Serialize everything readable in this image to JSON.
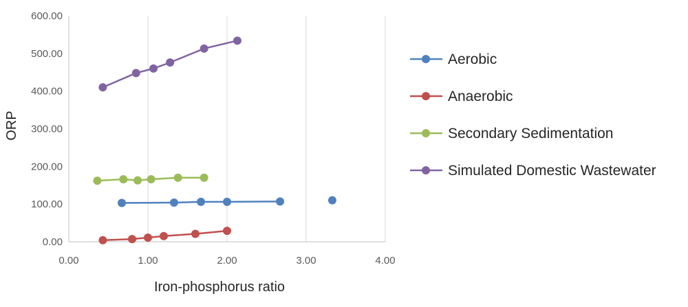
{
  "chart_data": {
    "type": "scatter",
    "title": "",
    "xlabel": "Iron-phosphorus ratio",
    "ylabel": "ORP",
    "xlim": [
      0,
      4
    ],
    "ylim": [
      0,
      600
    ],
    "x_ticks": [
      "0.00",
      "1.00",
      "2.00",
      "3.00",
      "4.00"
    ],
    "y_ticks": [
      "0.00",
      "100.00",
      "200.00",
      "300.00",
      "400.00",
      "500.00",
      "600.00"
    ],
    "grid": "vertical",
    "legend_position": "right",
    "series": [
      {
        "name": "Aerobic",
        "color": "#4F81BD",
        "x": [
          0.67,
          1.33,
          1.67,
          2.0,
          2.67,
          3.33
        ],
        "y": [
          103,
          104,
          106,
          106,
          107,
          110
        ],
        "connected": [
          true,
          true,
          true,
          true,
          true,
          false
        ]
      },
      {
        "name": "Anaerobic",
        "color": "#C0504D",
        "x": [
          0.43,
          0.8,
          1.0,
          1.2,
          1.6,
          2.0
        ],
        "y": [
          4,
          7,
          11,
          15,
          21,
          29
        ],
        "connected": [
          true,
          true,
          true,
          true,
          true,
          true
        ]
      },
      {
        "name": "Secondary Sedimentation",
        "color": "#9BBB59",
        "x": [
          0.36,
          0.69,
          0.87,
          1.04,
          1.38,
          1.71
        ],
        "y": [
          162,
          166,
          163,
          166,
          170,
          170
        ],
        "connected": [
          true,
          true,
          true,
          true,
          true,
          true
        ]
      },
      {
        "name": "Simulated Domestic Wastewater",
        "color": "#8064A2",
        "x": [
          0.43,
          0.85,
          1.07,
          1.28,
          1.71,
          2.13
        ],
        "y": [
          410,
          448,
          460,
          476,
          513,
          534
        ],
        "connected": [
          true,
          true,
          true,
          true,
          true,
          true
        ]
      }
    ]
  }
}
